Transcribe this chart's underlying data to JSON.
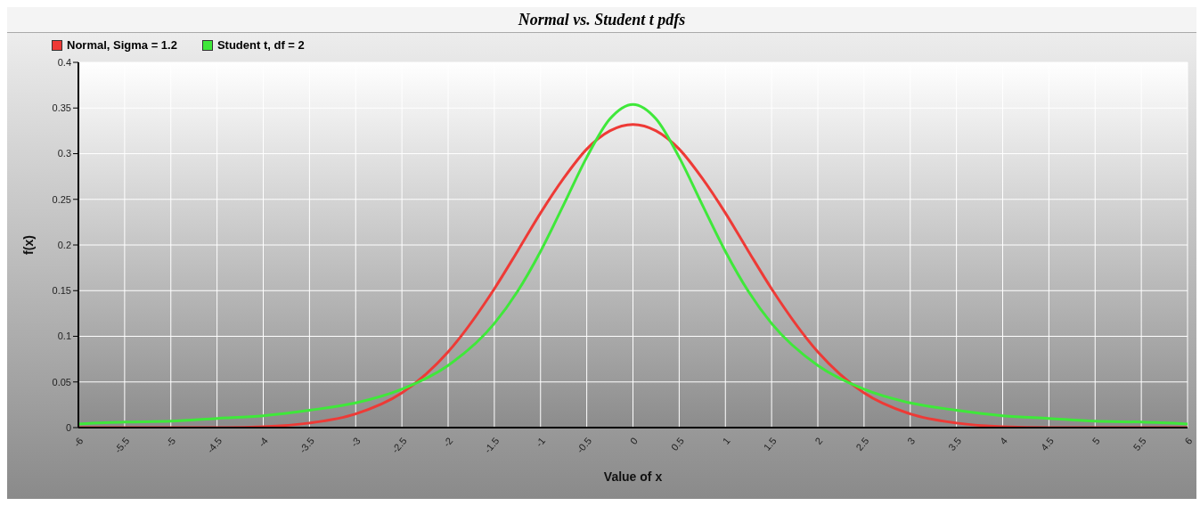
{
  "chart_data": {
    "type": "line",
    "title": "Normal vs. Student t pdfs",
    "xlabel": "Value of x",
    "ylabel": "f(x)",
    "x": [
      -6,
      -5.5,
      -5,
      -4.5,
      -4,
      -3.5,
      -3,
      -2.5,
      -2,
      -1.5,
      -1.25,
      -1,
      -0.75,
      -0.5,
      -0.25,
      0,
      0.25,
      0.5,
      0.75,
      1,
      1.25,
      1.5,
      2,
      2.5,
      3,
      3.5,
      4,
      4.5,
      5,
      5.5,
      6
    ],
    "series": [
      {
        "name": "Normal, Sigma = 1.2",
        "color": "#ee3a36",
        "values": [
          0,
          0,
          0,
          0,
          0.001,
          0.005,
          0.015,
          0.038,
          0.083,
          0.152,
          0.193,
          0.235,
          0.273,
          0.305,
          0.325,
          0.332,
          0.325,
          0.305,
          0.273,
          0.235,
          0.193,
          0.152,
          0.083,
          0.038,
          0.015,
          0.005,
          0.001,
          0,
          0,
          0,
          0
        ]
      },
      {
        "name": "Student t, df = 2",
        "color": "#3fe83a",
        "values": [
          0.004,
          0.006,
          0.007,
          0.01,
          0.013,
          0.019,
          0.027,
          0.042,
          0.068,
          0.114,
          0.149,
          0.193,
          0.244,
          0.296,
          0.338,
          0.354,
          0.338,
          0.296,
          0.244,
          0.193,
          0.149,
          0.114,
          0.068,
          0.042,
          0.027,
          0.019,
          0.013,
          0.01,
          0.007,
          0.006,
          0.004
        ]
      }
    ],
    "xlim": [
      -6,
      6
    ],
    "xticks": [
      -6,
      -5.5,
      -5,
      -4.5,
      -4,
      -3.5,
      -3,
      -2.5,
      -2,
      -1.5,
      -1,
      -0.5,
      0,
      0.5,
      1,
      1.5,
      2,
      2.5,
      3,
      3.5,
      4,
      4.5,
      5,
      5.5,
      6
    ],
    "ylim": [
      0,
      0.4
    ],
    "yticks": [
      0,
      0.05,
      0.1,
      0.15,
      0.2,
      0.25,
      0.3,
      0.35,
      0.4
    ],
    "grid": true,
    "legend": "top left",
    "marker": "none",
    "line_style": "solid"
  }
}
